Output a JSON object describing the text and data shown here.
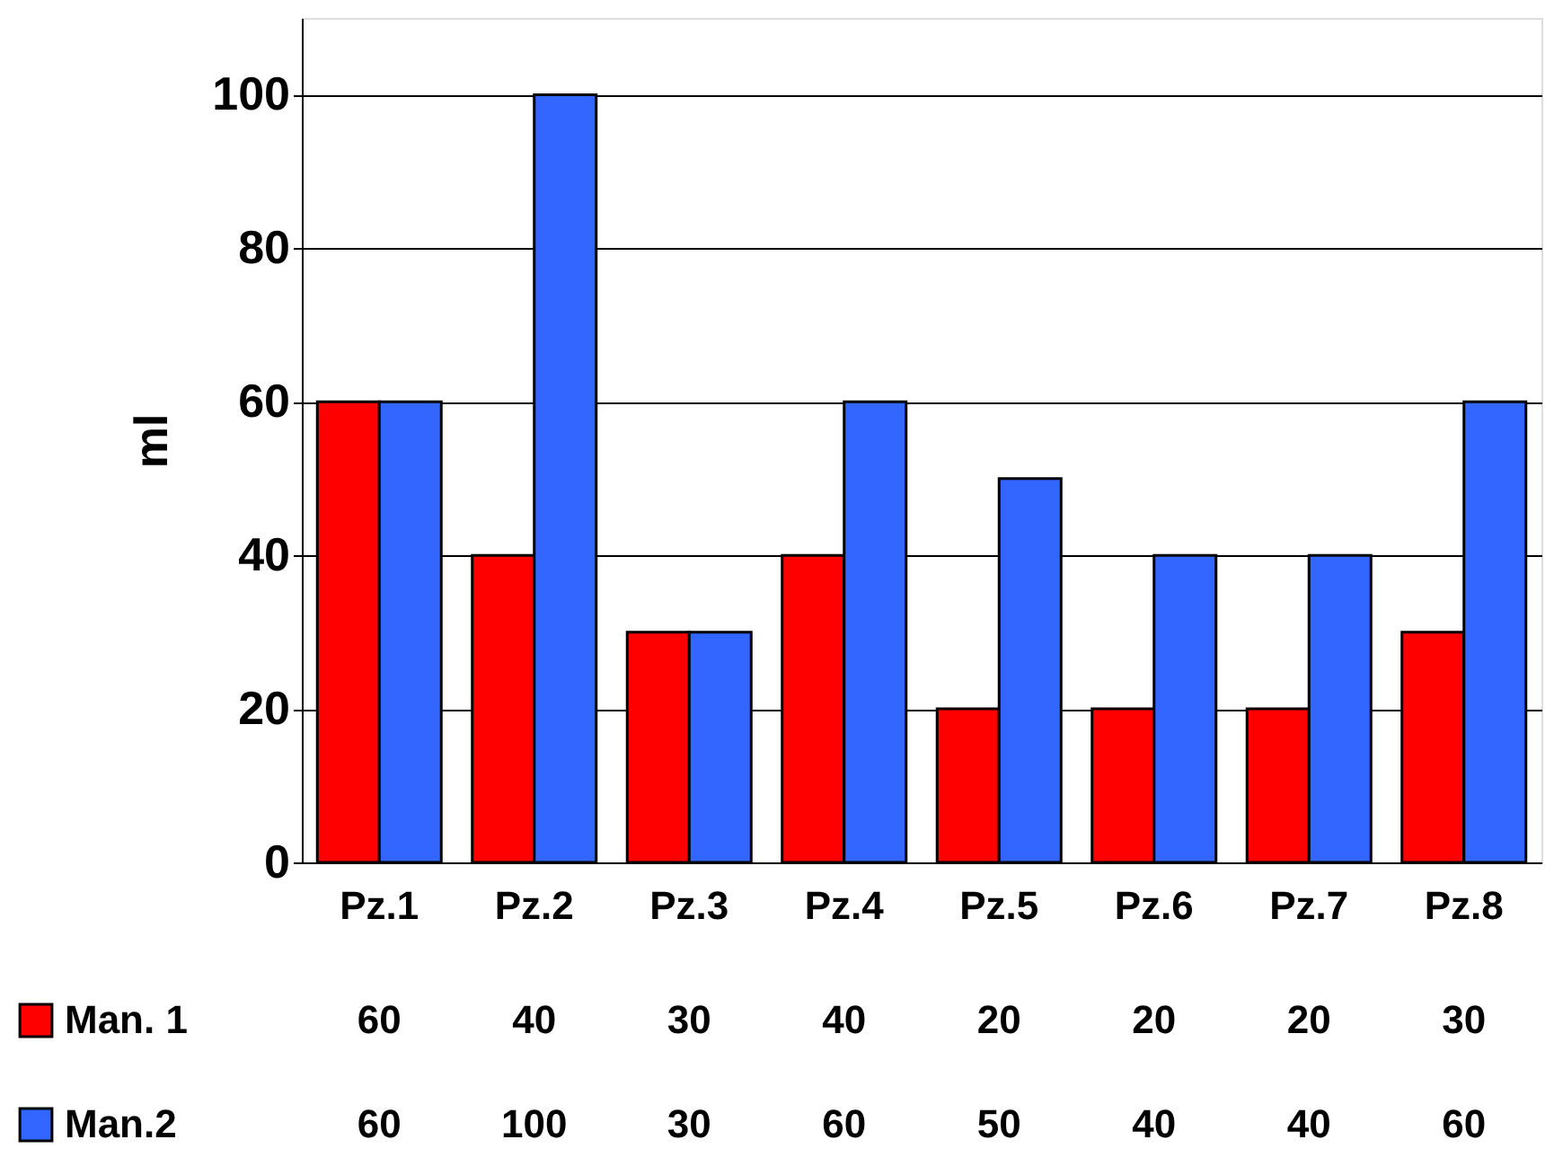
{
  "chart_data": {
    "type": "bar",
    "ylabel": "ml",
    "categories": [
      "Pz.1",
      "Pz.2",
      "Pz.3",
      "Pz.4",
      "Pz.5",
      "Pz.6",
      "Pz.7",
      "Pz.8"
    ],
    "series": [
      {
        "name": "Man. 1",
        "color": "#ff0000",
        "values": [
          60,
          40,
          30,
          40,
          20,
          20,
          20,
          30
        ]
      },
      {
        "name": "Man.2",
        "color": "#3366ff",
        "values": [
          60,
          100,
          30,
          60,
          50,
          40,
          40,
          60
        ]
      }
    ],
    "ylim": [
      0,
      110
    ],
    "yticks": [
      0,
      20,
      40,
      60,
      80,
      100
    ],
    "grid": "y",
    "legend": "bottom",
    "data_labels": true
  }
}
